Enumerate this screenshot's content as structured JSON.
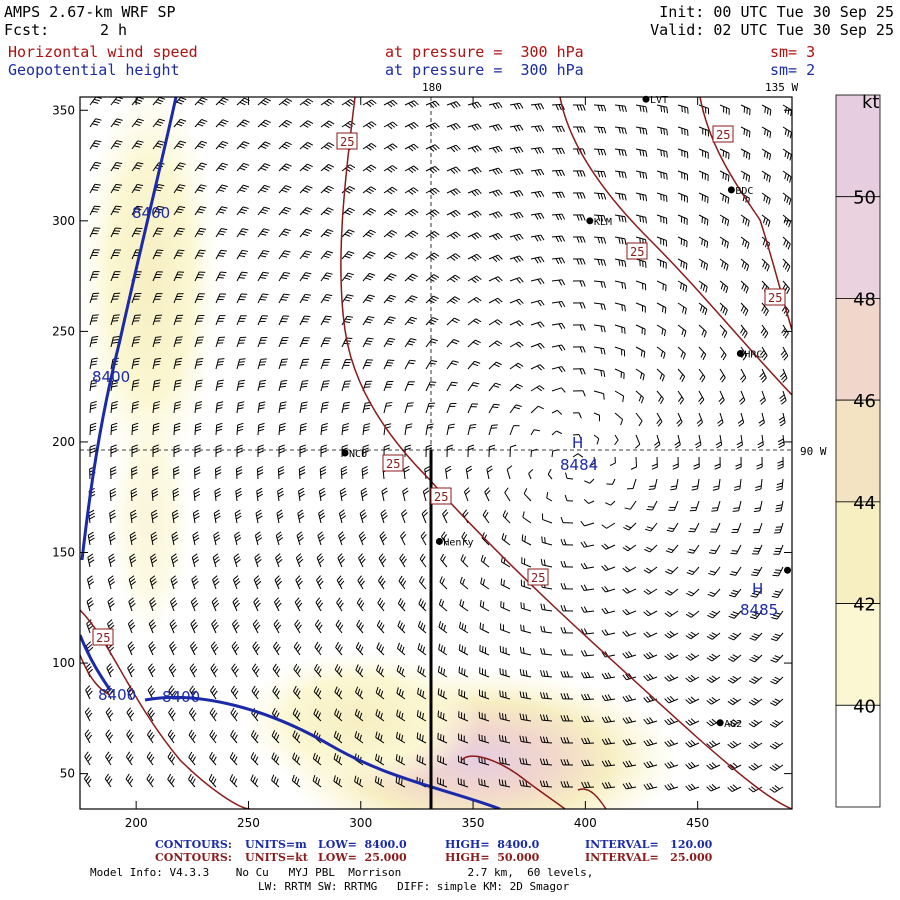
{
  "header": {
    "model": "AMPS 2.67-km WRF SP",
    "fcst_label": "Fcst:",
    "fcst_value": "2 h",
    "init": "Init: 00 UTC Tue 30 Sep 25",
    "valid": "Valid: 02 UTC Tue 30 Sep 25",
    "field1": "Horizontal wind speed",
    "field1_level": "at pressure =  300 hPa",
    "field1_sm": "sm= 3",
    "field2": "Geopotential height",
    "field2_level": "at pressure =  300 hPa",
    "field2_sm": "sm= 2"
  },
  "map": {
    "lon_labels": [
      "180",
      "135 W",
      "90 W"
    ],
    "x_ticks": [
      "200",
      "250",
      "300",
      "350",
      "400",
      "450"
    ],
    "y_ticks": [
      "350",
      "300",
      "250",
      "200",
      "150",
      "100",
      "50"
    ],
    "x_tick_values": [
      200,
      250,
      300,
      350,
      400,
      450
    ],
    "y_tick_values": [
      350,
      300,
      250,
      200,
      150,
      100,
      50
    ],
    "x_range": [
      175,
      492
    ],
    "y_range": [
      34,
      356
    ],
    "stations": [
      {
        "name": "LVT",
        "x": 427,
        "y": 355
      },
      {
        "name": "BDC",
        "x": 465,
        "y": 314
      },
      {
        "name": "KLM",
        "x": 402,
        "y": 300
      },
      {
        "name": "HRC",
        "x": 469,
        "y": 240
      },
      {
        "name": "NCU",
        "x": 293,
        "y": 195
      },
      {
        "name": "Henry",
        "x": 335,
        "y": 155
      },
      {
        "name": "",
        "x": 490,
        "y": 142
      },
      {
        "name": "AG2",
        "x": 460,
        "y": 73
      }
    ],
    "height_labels": [
      "8400",
      "8400",
      "8400",
      "8400"
    ],
    "highs": [
      {
        "symbol": "H",
        "value": "8484",
        "x": 378,
        "y": 200
      },
      {
        "symbol": "H",
        "value": "8485",
        "x": 480,
        "y": 132
      }
    ],
    "speed_labels": [
      "25",
      "25",
      "25",
      "25",
      "25",
      "25",
      "25",
      "25"
    ]
  },
  "colorbar": {
    "unit": "kt",
    "labels": [
      "50",
      "48",
      "46",
      "44",
      "42",
      "40"
    ],
    "colors": [
      "#ffffff",
      "#fbf7d2",
      "#f7eec2",
      "#f3e3c2",
      "#f1d6cc",
      "#ead3de",
      "#e6cde0"
    ]
  },
  "footer": {
    "c1_label": "CONTOURS:",
    "c1_units": "UNITS=m",
    "c1_low": "LOW=  8400.0",
    "c1_high": "HIGH=  8400.0",
    "c1_interval": "INTERVAL=   120.00",
    "c2_label": "CONTOURS:",
    "c2_units": "UNITS=kt",
    "c2_low": "LOW=  25.000",
    "c2_high": "HIGH=  50.000",
    "c2_interval": "INTERVAL=   25.000",
    "model_info": "Model Info: V4.3.3    No Cu   MYJ PBL  Morrison          2.7 km,  60 levels,",
    "model_info2": "LW: RRTM SW: RRTMG   DIFF: simple KM: 2D Smagor"
  }
}
